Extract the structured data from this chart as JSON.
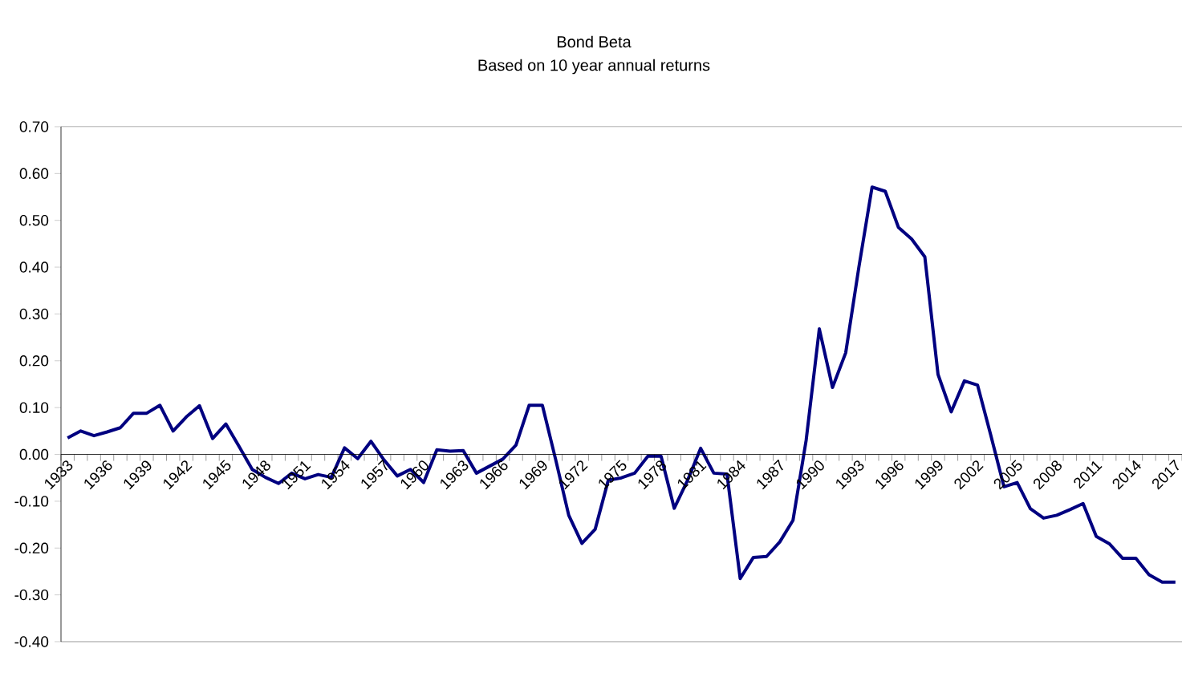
{
  "chart_data": {
    "type": "line",
    "title": "Bond Beta",
    "subtitle": "Based on 10 year annual returns",
    "categories": [
      "1933",
      null,
      null,
      "1936",
      null,
      null,
      "1939",
      null,
      null,
      "1942",
      null,
      null,
      "1945",
      null,
      null,
      "1948",
      null,
      null,
      "1951",
      null,
      null,
      "1954",
      null,
      null,
      "1957",
      null,
      null,
      "1960",
      null,
      null,
      "1963",
      null,
      null,
      "1966",
      null,
      null,
      "1969",
      null,
      null,
      "1972",
      null,
      null,
      "1975",
      null,
      null,
      "1978",
      null,
      null,
      "1981",
      null,
      null,
      "1984",
      null,
      null,
      "1987",
      null,
      null,
      "1990",
      null,
      null,
      "1993",
      null,
      null,
      "1996",
      null,
      null,
      "1999",
      null,
      null,
      "2002",
      null,
      null,
      "2005",
      null,
      null,
      "2008",
      null,
      null,
      "2011",
      null,
      null,
      "2014",
      null,
      null,
      "2017"
    ],
    "series": [
      {
        "color": "#000080",
        "values": [
          0.035,
          0.05,
          0.04,
          0.048,
          0.057,
          0.088,
          0.088,
          0.105,
          0.05,
          0.08,
          0.104,
          0.034,
          0.065,
          0.017,
          -0.032,
          -0.049,
          -0.062,
          -0.04,
          -0.052,
          -0.043,
          -0.049,
          0.014,
          -0.009,
          0.028,
          -0.012,
          -0.046,
          -0.032,
          -0.06,
          0.01,
          0.007,
          0.008,
          -0.04,
          -0.025,
          -0.01,
          0.02,
          0.105,
          0.105,
          -0.01,
          -0.13,
          -0.19,
          -0.16,
          -0.055,
          -0.05,
          -0.04,
          -0.004,
          -0.004,
          -0.115,
          -0.056,
          0.013,
          -0.04,
          -0.042,
          -0.265,
          -0.22,
          -0.218,
          -0.187,
          -0.141,
          0.03,
          0.268,
          0.143,
          0.217,
          0.4,
          0.571,
          0.562,
          0.485,
          0.46,
          0.422,
          0.171,
          0.091,
          0.157,
          0.148,
          0.041,
          -0.069,
          -0.06,
          -0.116,
          -0.136,
          -0.13,
          -0.118,
          -0.105,
          -0.175,
          -0.191,
          -0.222,
          -0.222,
          -0.257,
          -0.273,
          -0.273
        ]
      }
    ],
    "ylim": [
      -0.4,
      0.7
    ],
    "yticks": [
      {
        "value": -0.4,
        "label": "-0.40"
      },
      {
        "value": -0.3,
        "label": "-0.30"
      },
      {
        "value": -0.2,
        "label": "-0.20"
      },
      {
        "value": -0.1,
        "label": "-0.10"
      },
      {
        "value": 0,
        "label": "0.00"
      },
      {
        "value": 0.1,
        "label": "0.10"
      },
      {
        "value": 0.2,
        "label": "0.20"
      },
      {
        "value": 0.3,
        "label": "0.30"
      },
      {
        "value": 0.4,
        "label": "0.40"
      },
      {
        "value": 0.5,
        "label": "0.50"
      },
      {
        "value": 0.6,
        "label": "0.60"
      },
      {
        "value": 0.7,
        "label": "0.70"
      }
    ]
  }
}
